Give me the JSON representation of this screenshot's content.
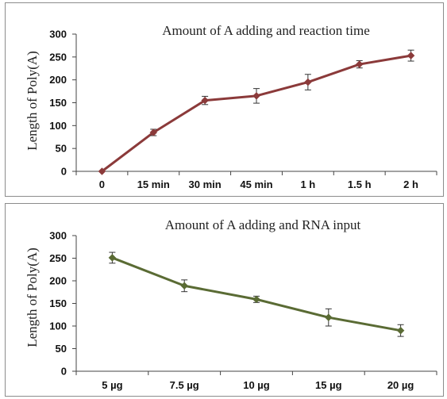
{
  "chart_data": [
    {
      "type": "line",
      "title": "Amount of A adding and reaction time",
      "xlabel": "",
      "ylabel": "Length of Poly(A)",
      "categories": [
        "0",
        "15 min",
        "30 min",
        "45 min",
        "1 h",
        "1.5 h",
        "2 h"
      ],
      "series": [
        {
          "values": [
            0,
            85,
            155,
            165,
            195,
            234,
            253
          ],
          "errors": [
            0,
            7,
            9,
            16,
            17,
            8,
            12
          ]
        }
      ],
      "ylim": [
        0,
        300
      ],
      "yticks": [
        0,
        50,
        100,
        150,
        200,
        250,
        300
      ],
      "grid": false,
      "color": "#8b3a3a"
    },
    {
      "type": "line",
      "title": "Amount of A adding and RNA input",
      "xlabel": "",
      "ylabel": "Length of Poly(A)",
      "categories": [
        "5 µg",
        "7.5 µg",
        "10 µg",
        "15 µg",
        "20 µg"
      ],
      "series": [
        {
          "values": [
            251,
            189,
            159,
            119,
            90
          ],
          "errors": [
            12,
            13,
            7,
            19,
            13
          ]
        }
      ],
      "ylim": [
        0,
        300
      ],
      "yticks": [
        0,
        50,
        100,
        150,
        200,
        250,
        300
      ],
      "grid": false,
      "color": "#5a6b34"
    }
  ]
}
